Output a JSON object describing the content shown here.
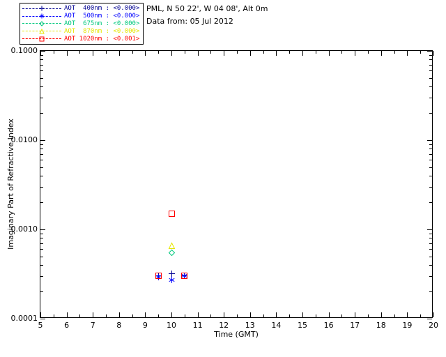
{
  "header": {
    "site": "PML, N 50 22', W 04 08', Alt 0m",
    "date": "Data from: 05 Jul 2012"
  },
  "chart_data": {
    "type": "scatter",
    "title": "",
    "xlabel": "Time (GMT)",
    "ylabel": "Imaginary Part of Refractive Index",
    "xlim": [
      5,
      20
    ],
    "ylim": [
      0.0001,
      0.1
    ],
    "y_scale": "log",
    "grid": "off",
    "legend_position": "top-left-outside",
    "x_ticks": [
      {
        "v": 5,
        "label": "5"
      },
      {
        "v": 6,
        "label": "6"
      },
      {
        "v": 7,
        "label": "7"
      },
      {
        "v": 8,
        "label": "8"
      },
      {
        "v": 9,
        "label": "9"
      },
      {
        "v": 10,
        "label": "10"
      },
      {
        "v": 11,
        "label": "11"
      },
      {
        "v": 12,
        "label": "12"
      },
      {
        "v": 13,
        "label": "13"
      },
      {
        "v": 14,
        "label": "14"
      },
      {
        "v": 15,
        "label": "15"
      },
      {
        "v": 16,
        "label": "16"
      },
      {
        "v": 17,
        "label": "17"
      },
      {
        "v": 18,
        "label": "18"
      },
      {
        "v": 19,
        "label": "19"
      },
      {
        "v": 20,
        "label": "20"
      }
    ],
    "y_ticks": [
      {
        "v": 0.1,
        "label": "0.1000"
      },
      {
        "v": 0.01,
        "label": "0.0100"
      },
      {
        "v": 0.001,
        "label": "0.0010"
      },
      {
        "v": 0.0001,
        "label": "0.0001"
      }
    ],
    "series": [
      {
        "name": "AOT 400nm",
        "legend_label": "AOT  400nm : <0.000>",
        "color": "#000090",
        "marker": "plus",
        "points": [
          {
            "x": 9.5,
            "y": 0.0003
          },
          {
            "x": 10,
            "y": 0.00032
          },
          {
            "x": 10.5,
            "y": 0.0003
          }
        ]
      },
      {
        "name": "AOT 500nm",
        "legend_label": "AOT  500nm : <0.000>",
        "color": "#0000ff",
        "marker": "asterisk",
        "points": [
          {
            "x": 9.5,
            "y": 0.00029
          },
          {
            "x": 10,
            "y": 0.00027
          },
          {
            "x": 10.5,
            "y": 0.0003
          }
        ]
      },
      {
        "name": "AOT 675nm",
        "legend_label": "AOT  675nm : <0.000>",
        "color": "#00c87d",
        "marker": "diamond",
        "points": [
          {
            "x": 10,
            "y": 0.00055
          }
        ]
      },
      {
        "name": "AOT 870nm",
        "legend_label": "AOT  870nm : <0.000>",
        "color": "#e6e600",
        "marker": "triangle",
        "points": [
          {
            "x": 10,
            "y": 0.00065
          }
        ]
      },
      {
        "name": "AOT 1020nm",
        "legend_label": "AOT 1020nm : <0.001>",
        "color": "#ff0000",
        "marker": "square",
        "points": [
          {
            "x": 9.5,
            "y": 0.0003
          },
          {
            "x": 10,
            "y": 0.0015
          },
          {
            "x": 10.5,
            "y": 0.0003
          }
        ]
      }
    ]
  }
}
